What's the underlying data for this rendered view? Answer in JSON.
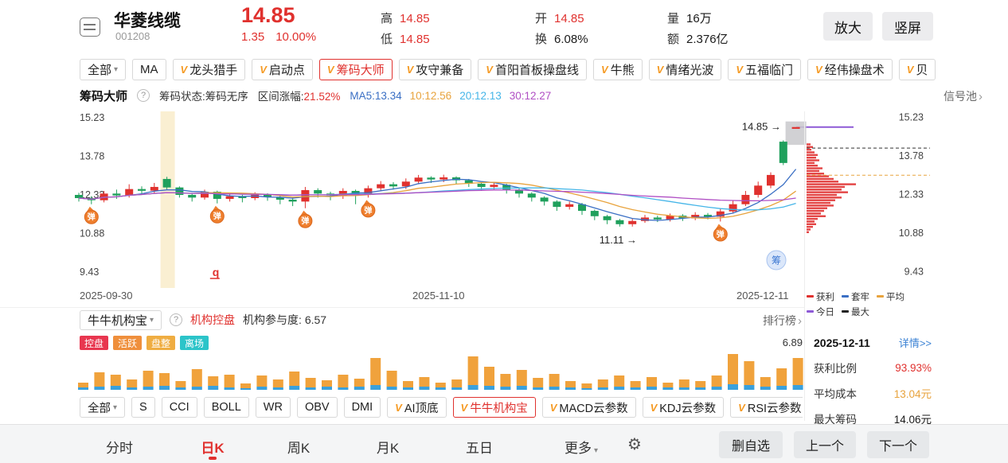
{
  "icons": {
    "v": "V",
    "caret": "▾",
    "chevron": "›",
    "help": "?",
    "gear": "⚙",
    "arrow_right": "→"
  },
  "header": {
    "stock_name": "华菱线缆",
    "stock_code": "001208",
    "price": "14.85",
    "change": "1.35",
    "change_pct": "10.00%",
    "stats": [
      {
        "label": "高",
        "value": "14.85",
        "color": "#e0312e"
      },
      {
        "label": "低",
        "value": "14.85",
        "color": "#e0312e"
      },
      {
        "label": "开",
        "value": "14.85",
        "color": "#e0312e"
      },
      {
        "label": "换",
        "value": "6.08%",
        "color": "#1a1a1a"
      },
      {
        "label": "量",
        "value": "16万",
        "color": "#1a1a1a"
      },
      {
        "label": "额",
        "value": "2.376亿",
        "color": "#1a1a1a"
      }
    ],
    "zoom_button": "放大",
    "portrait_button": "竖屏"
  },
  "strategy_tabs": [
    {
      "label": "全部",
      "caret": true
    },
    {
      "label": "MA"
    },
    {
      "label": "龙头猎手",
      "v": true
    },
    {
      "label": "启动点",
      "v": true
    },
    {
      "label": "筹码大师",
      "v": true,
      "active": true
    },
    {
      "label": "攻守兼备",
      "v": true
    },
    {
      "label": "首阳首板操盘线",
      "v": true
    },
    {
      "label": "牛熊",
      "v": true
    },
    {
      "label": "情绪光波",
      "v": true
    },
    {
      "label": "五福临门",
      "v": true
    },
    {
      "label": "经伟操盘术",
      "v": true
    },
    {
      "label": "贝",
      "v": true
    }
  ],
  "chip_master": {
    "title": "筹码大师",
    "status_label": "筹码状态:",
    "status_value": "筹码无序",
    "range_label": "区间涨幅:",
    "range_value": "21.52%",
    "ma_values": [
      {
        "text": "MA5:13.34",
        "color": "#3a6fc4"
      },
      {
        "text": "10:12.56",
        "color": "#e8a33d"
      },
      {
        "text": "20:12.13",
        "color": "#45b5e8"
      },
      {
        "text": "30:12.27",
        "color": "#b04fc4"
      }
    ],
    "signal_pool": "信号池"
  },
  "chart_data": {
    "type": "candlestick",
    "y_range": [
      9.43,
      15.23
    ],
    "y_ticks": [
      "15.23",
      "13.78",
      "12.33",
      "10.88",
      "9.43"
    ],
    "x_ticks": [
      "2025-09-30",
      "2025-11-10",
      "2025-12-11"
    ],
    "up_color": "#e0312e",
    "down_color": "#1fa05c",
    "ma_lines": [
      {
        "window": 5,
        "color": "#3a6fc4"
      },
      {
        "window": 10,
        "color": "#e8a33d"
      },
      {
        "window": 20,
        "color": "#45b5e8"
      },
      {
        "window": 30,
        "color": "#b04fc4"
      }
    ],
    "candles": [
      [
        12.3,
        12.38,
        12.05,
        12.18
      ],
      [
        12.18,
        12.25,
        11.95,
        12.1
      ],
      [
        12.1,
        12.45,
        12.02,
        12.35
      ],
      [
        12.35,
        12.5,
        12.15,
        12.28
      ],
      [
        12.28,
        12.7,
        12.2,
        12.52
      ],
      [
        12.52,
        12.62,
        12.3,
        12.46
      ],
      [
        12.46,
        12.75,
        12.35,
        12.6
      ],
      [
        12.9,
        12.98,
        12.5,
        12.58
      ],
      [
        12.58,
        12.62,
        12.2,
        12.3
      ],
      [
        12.3,
        12.38,
        12.05,
        12.2
      ],
      [
        12.2,
        12.5,
        12.12,
        12.42
      ],
      [
        12.42,
        12.46,
        11.98,
        12.15
      ],
      [
        12.15,
        12.35,
        12.05,
        12.25
      ],
      [
        12.25,
        12.3,
        12.02,
        12.18
      ],
      [
        12.18,
        12.4,
        12.1,
        12.3
      ],
      [
        12.3,
        12.36,
        12.08,
        12.22
      ],
      [
        12.22,
        12.28,
        11.95,
        12.12
      ],
      [
        12.12,
        12.2,
        11.88,
        12.05
      ],
      [
        12.05,
        12.6,
        11.8,
        12.48
      ],
      [
        12.48,
        12.55,
        12.2,
        12.35
      ],
      [
        12.35,
        12.42,
        12.1,
        12.28
      ],
      [
        12.28,
        12.55,
        12.15,
        12.45
      ],
      [
        12.45,
        12.5,
        11.95,
        12.3
      ],
      [
        12.3,
        12.65,
        12.2,
        12.55
      ],
      [
        12.55,
        12.82,
        12.45,
        12.7
      ],
      [
        12.7,
        12.78,
        12.5,
        12.62
      ],
      [
        12.62,
        12.92,
        12.52,
        12.8
      ],
      [
        12.8,
        13.05,
        12.7,
        12.95
      ],
      [
        12.95,
        13.0,
        12.75,
        12.88
      ],
      [
        12.88,
        13.06,
        12.78,
        12.96
      ],
      [
        12.96,
        13.0,
        12.7,
        12.85
      ],
      [
        12.85,
        12.9,
        12.6,
        12.72
      ],
      [
        12.72,
        12.78,
        12.45,
        12.6
      ],
      [
        12.6,
        12.76,
        12.5,
        12.68
      ],
      [
        12.68,
        12.72,
        12.35,
        12.5
      ],
      [
        12.5,
        12.55,
        12.2,
        12.35
      ],
      [
        12.35,
        12.4,
        12.05,
        12.2
      ],
      [
        12.2,
        12.25,
        11.9,
        12.05
      ],
      [
        12.05,
        12.1,
        11.7,
        11.85
      ],
      [
        11.85,
        12.05,
        11.75,
        11.95
      ],
      [
        11.95,
        12.0,
        11.55,
        11.7
      ],
      [
        11.7,
        11.75,
        11.35,
        11.5
      ],
      [
        11.5,
        11.55,
        11.2,
        11.35
      ],
      [
        11.35,
        11.4,
        11.11,
        11.2
      ],
      [
        11.2,
        11.42,
        11.11,
        11.32
      ],
      [
        11.32,
        11.55,
        11.25,
        11.45
      ],
      [
        11.45,
        11.52,
        11.28,
        11.38
      ],
      [
        11.38,
        11.6,
        11.3,
        11.52
      ],
      [
        11.52,
        11.58,
        11.32,
        11.42
      ],
      [
        11.42,
        11.65,
        11.35,
        11.55
      ],
      [
        11.55,
        11.62,
        11.38,
        11.48
      ],
      [
        11.48,
        11.78,
        11.3,
        11.68
      ],
      [
        11.68,
        12.1,
        11.6,
        11.95
      ],
      [
        11.95,
        12.45,
        11.88,
        12.3
      ],
      [
        12.3,
        12.8,
        12.2,
        12.65
      ],
      [
        12.65,
        13.15,
        12.55,
        13.05
      ],
      [
        14.3,
        14.35,
        13.42,
        13.5
      ],
      [
        14.85,
        14.85,
        14.85,
        14.85
      ]
    ],
    "highlight_index": 7,
    "bounce_label": "弹",
    "bounce_indices": [
      1,
      11,
      18,
      23,
      51
    ],
    "q_marker": "q",
    "q_index": 11,
    "chip_badge": "筹",
    "high_annotation": "14.85",
    "low_annotation": "11.11",
    "today_price": 14.85,
    "avg_cost": 13.04,
    "max_chip_price": 14.06,
    "chip_color": "#e34444",
    "chip_distribution": [
      [
        14.2,
        5
      ],
      [
        14.1,
        8
      ],
      [
        14.0,
        6
      ],
      [
        13.9,
        10
      ],
      [
        13.8,
        14
      ],
      [
        13.7,
        12
      ],
      [
        13.6,
        16
      ],
      [
        13.5,
        10
      ],
      [
        13.4,
        14
      ],
      [
        13.3,
        20
      ],
      [
        13.2,
        16
      ],
      [
        13.1,
        22
      ],
      [
        13.0,
        28
      ],
      [
        12.9,
        34
      ],
      [
        12.8,
        40
      ],
      [
        12.7,
        62
      ],
      [
        12.6,
        48
      ],
      [
        12.5,
        44
      ],
      [
        12.4,
        52
      ],
      [
        12.3,
        38
      ],
      [
        12.2,
        44
      ],
      [
        12.1,
        36
      ],
      [
        12.0,
        30
      ],
      [
        11.9,
        34
      ],
      [
        11.8,
        26
      ],
      [
        11.7,
        22
      ],
      [
        11.6,
        18
      ],
      [
        11.5,
        24
      ],
      [
        11.4,
        14
      ],
      [
        11.3,
        10
      ],
      [
        11.2,
        12
      ],
      [
        11.1,
        8
      ],
      [
        11.0,
        5
      ],
      [
        10.9,
        3
      ]
    ]
  },
  "chip_legend": {
    "row1": [
      {
        "label": "获利",
        "color": "#e0312e"
      },
      {
        "label": "套牢",
        "color": "#3a6fc4"
      },
      {
        "label": "平均",
        "color": "#e8a33d"
      }
    ],
    "row2": [
      {
        "label": "今日",
        "color": "#8e5ad6"
      },
      {
        "label": "最大",
        "color": "#222222"
      }
    ]
  },
  "institution": {
    "name": "牛牛机构宝",
    "control_label": "机构控盘",
    "participation_label": "机构参与度:",
    "participation_value": "6.57",
    "rank_label": "排行榜",
    "tags": [
      {
        "label": "控盘",
        "color": "#e8364f"
      },
      {
        "label": "活跃",
        "color": "#ef8f3c"
      },
      {
        "label": "盘整",
        "color": "#efad42"
      },
      {
        "label": "离场",
        "color": "#2cc4c9"
      }
    ],
    "current_value": "6.89",
    "orange_color": "#f0a23c",
    "blue_color": "#3aa0dc",
    "bars": [
      [
        6,
        3
      ],
      [
        18,
        4
      ],
      [
        14,
        5
      ],
      [
        10,
        3
      ],
      [
        20,
        4
      ],
      [
        16,
        5
      ],
      [
        8,
        3
      ],
      [
        22,
        4
      ],
      [
        12,
        5
      ],
      [
        16,
        3
      ],
      [
        6,
        2
      ],
      [
        14,
        4
      ],
      [
        10,
        3
      ],
      [
        18,
        5
      ],
      [
        12,
        3
      ],
      [
        8,
        4
      ],
      [
        16,
        3
      ],
      [
        10,
        4
      ],
      [
        34,
        6
      ],
      [
        20,
        4
      ],
      [
        8,
        3
      ],
      [
        12,
        4
      ],
      [
        6,
        3
      ],
      [
        10,
        3
      ],
      [
        36,
        6
      ],
      [
        24,
        5
      ],
      [
        16,
        4
      ],
      [
        20,
        5
      ],
      [
        12,
        3
      ],
      [
        16,
        4
      ],
      [
        8,
        3
      ],
      [
        6,
        2
      ],
      [
        10,
        3
      ],
      [
        14,
        4
      ],
      [
        8,
        3
      ],
      [
        12,
        4
      ],
      [
        6,
        3
      ],
      [
        10,
        3
      ],
      [
        8,
        3
      ],
      [
        14,
        4
      ],
      [
        38,
        7
      ],
      [
        30,
        6
      ],
      [
        12,
        4
      ],
      [
        22,
        5
      ],
      [
        34,
        6
      ]
    ]
  },
  "detail_panel": {
    "date": "2025-12-11",
    "detail_link": "详情>>",
    "rows": [
      {
        "label": "获利比例",
        "value": "93.93%",
        "color": "#e0312e"
      },
      {
        "label": "平均成本",
        "value": "13.04元",
        "color": "#e8a33d"
      },
      {
        "label": "最大筹码",
        "value": "14.06元",
        "color": "#1a1a1a"
      }
    ]
  },
  "indicator_tabs": [
    {
      "label": "全部",
      "caret": true
    },
    {
      "label": "S"
    },
    {
      "label": "CCI"
    },
    {
      "label": "BOLL"
    },
    {
      "label": "WR"
    },
    {
      "label": "OBV"
    },
    {
      "label": "DMI"
    },
    {
      "label": "AI顶底",
      "v": true
    },
    {
      "label": "牛牛机构宝",
      "v": true,
      "active": true
    },
    {
      "label": "MACD云参数",
      "v": true
    },
    {
      "label": "KDJ云参数",
      "v": true
    },
    {
      "label": "RSI云参数",
      "v": true
    }
  ],
  "bottom_bar": {
    "tabs": [
      {
        "label": "分时"
      },
      {
        "label": "日K",
        "active": true
      },
      {
        "label": "周K"
      },
      {
        "label": "月K"
      },
      {
        "label": "五日"
      }
    ],
    "more_label": "更多",
    "buttons": [
      "删自选",
      "上一个",
      "下一个"
    ]
  }
}
